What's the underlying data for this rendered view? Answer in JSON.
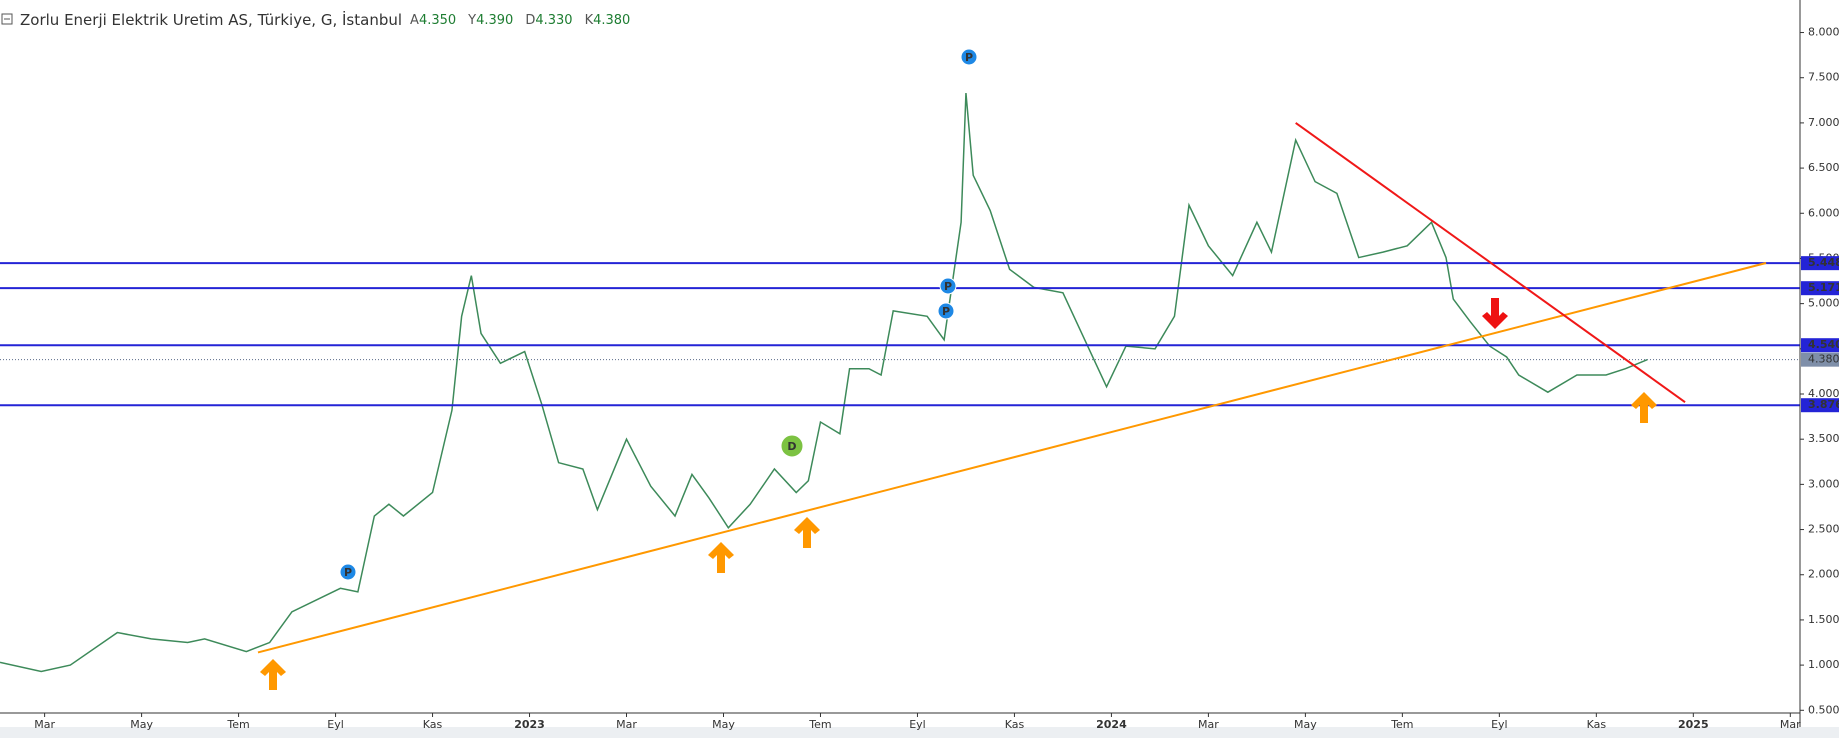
{
  "chart_data": {
    "type": "line",
    "title": "Zorlu Enerji Elektrik Uretim AS, Türkiye, G, İstanbul",
    "ohlc": [
      {
        "key": "A",
        "value": "4.350"
      },
      {
        "key": "Y",
        "value": "4.390"
      },
      {
        "key": "D",
        "value": "4.330"
      },
      {
        "key": "K",
        "value": "4.380"
      }
    ],
    "x": [
      -0.92,
      -0.07,
      0.53,
      1.5,
      2.2,
      2.95,
      3.3,
      4.16,
      4.64,
      5.1,
      6.1,
      6.46,
      6.8,
      7.1,
      7.4,
      8.0,
      8.4,
      8.6,
      8.8,
      9.0,
      9.4,
      9.9,
      10.25,
      10.6,
      11.1,
      11.4,
      12.0,
      12.5,
      13.0,
      13.35,
      13.7,
      14.1,
      14.55,
      15.05,
      15.5,
      15.75,
      16.0,
      16.4,
      16.6,
      17.0,
      17.25,
      17.5,
      18.2,
      18.55,
      18.9,
      19.0,
      19.15,
      19.5,
      19.9,
      20.4,
      21.0,
      21.45,
      21.9,
      22.3,
      22.9,
      23.3,
      23.6,
      24.0,
      24.5,
      25.0,
      25.3,
      25.8,
      26.2,
      26.65,
      27.1,
      27.6,
      28.1,
      28.6,
      28.9,
      29.05,
      29.4,
      29.8,
      30.15,
      30.4,
      31.0,
      31.6,
      32.2,
      32.6,
      33.05
    ],
    "series": [
      {
        "color": "#3d8a5a",
        "values": [
          1.03,
          0.93,
          1.0,
          1.36,
          1.29,
          1.25,
          1.29,
          1.15,
          1.25,
          1.59,
          1.85,
          1.81,
          2.65,
          2.78,
          2.65,
          2.91,
          3.82,
          4.86,
          5.31,
          4.67,
          4.34,
          4.47,
          3.89,
          3.24,
          3.17,
          2.72,
          3.5,
          2.98,
          2.65,
          3.11,
          2.85,
          2.52,
          2.78,
          3.17,
          2.91,
          3.04,
          3.69,
          3.56,
          4.28,
          4.28,
          4.21,
          4.92,
          4.86,
          4.6,
          5.9,
          7.33,
          6.42,
          6.03,
          5.38,
          5.18,
          5.12,
          4.6,
          4.08,
          4.53,
          4.5,
          4.86,
          6.09,
          5.64,
          5.31,
          5.9,
          5.57,
          6.81,
          6.35,
          6.22,
          5.51,
          5.57,
          5.64,
          5.9,
          5.51,
          5.05,
          4.8,
          4.53,
          4.41,
          4.21,
          4.02,
          4.21,
          4.21,
          4.28,
          4.38
        ]
      }
    ],
    "xlim": [
      -0.92,
      36.2
    ],
    "xticks": [
      {
        "value": 0,
        "label": "Mar"
      },
      {
        "value": 2,
        "label": "May"
      },
      {
        "value": 4,
        "label": "Tem"
      },
      {
        "value": 6,
        "label": "Eyl"
      },
      {
        "value": 8,
        "label": "Kas"
      },
      {
        "value": 10,
        "label": "2023"
      },
      {
        "value": 12,
        "label": "Mar"
      },
      {
        "value": 14,
        "label": "May"
      },
      {
        "value": 16,
        "label": "Tem"
      },
      {
        "value": 18,
        "label": "Eyl"
      },
      {
        "value": 20,
        "label": "Kas"
      },
      {
        "value": 22,
        "label": "2024"
      },
      {
        "value": 24,
        "label": "Mar"
      },
      {
        "value": 26,
        "label": "May"
      },
      {
        "value": 28,
        "label": "Tem"
      },
      {
        "value": 30,
        "label": "Eyl"
      },
      {
        "value": 32,
        "label": "Kas"
      },
      {
        "value": 34,
        "label": "2025"
      },
      {
        "value": 36,
        "label": "Mar"
      }
    ],
    "ylim": [
      0.47,
      8.36
    ],
    "yticks": [
      {
        "value": 0.5,
        "label": "0.500"
      },
      {
        "value": 1,
        "label": "1.000"
      },
      {
        "value": 1.5,
        "label": "1.500"
      },
      {
        "value": 2,
        "label": "2.000"
      },
      {
        "value": 2.5,
        "label": "2.500"
      },
      {
        "value": 3,
        "label": "3.000"
      },
      {
        "value": 3.5,
        "label": "3.500"
      },
      {
        "value": 4,
        "label": "4.000"
      },
      {
        "value": 4.5,
        "label": "4.500"
      },
      {
        "value": 5,
        "label": "5.000"
      },
      {
        "value": 5.5,
        "label": "5.500"
      },
      {
        "value": 6,
        "label": "6.000"
      },
      {
        "value": 6.5,
        "label": "6.500"
      },
      {
        "value": 7,
        "label": "7.000"
      },
      {
        "value": 7.5,
        "label": "7.500"
      },
      {
        "value": 8,
        "label": "8.000"
      }
    ],
    "levels": [
      {
        "value": 5.448,
        "label": "5.448"
      },
      {
        "value": 5.171,
        "label": "5.171"
      },
      {
        "value": 4.54,
        "label": "4.540"
      },
      {
        "value": 3.876,
        "label": "3.876"
      }
    ],
    "level_color": "#2424d6",
    "last_price": {
      "value": 4.38,
      "label": "4.380"
    },
    "trendlines": [
      {
        "color": "#ff9800",
        "x": [
          4.4,
          35.5
        ],
        "y": [
          1.14,
          5.45
        ]
      },
      {
        "color": "#f01818",
        "x": [
          25.8,
          33.83
        ],
        "y": [
          7.0,
          3.91
        ]
      }
    ],
    "badges": [
      "P",
      "P",
      "P",
      "P",
      "D"
    ]
  }
}
